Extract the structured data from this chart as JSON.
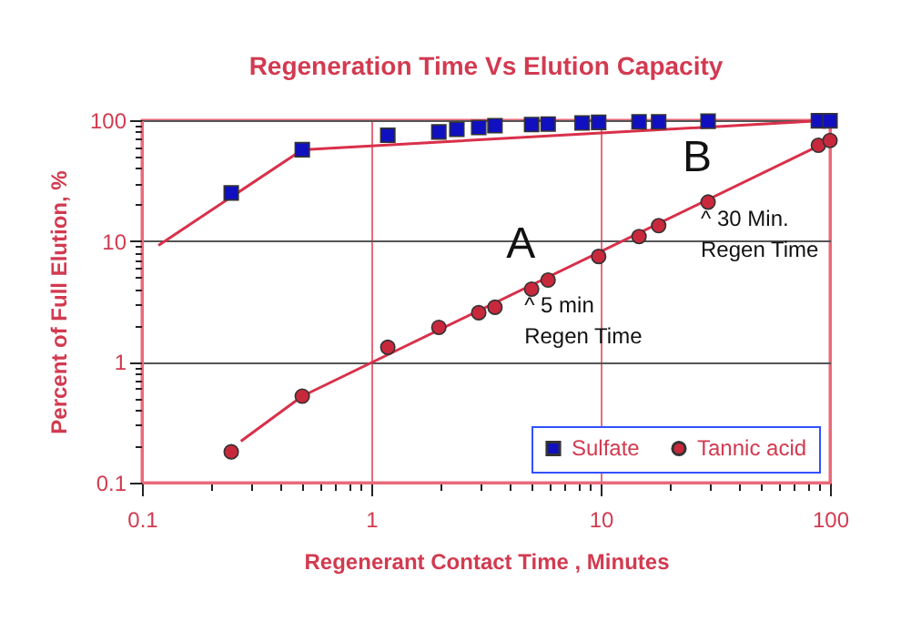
{
  "chart_data": {
    "type": "scatter",
    "title": "Regeneration Time Vs Elution Capacity",
    "xlabel": "Regenerant Contact Time , Minutes",
    "ylabel": "Percent of Full Elution, %",
    "log": "xy",
    "grid": true,
    "legend": "bottom right",
    "xlim": [
      0.1,
      100
    ],
    "ylim": [
      0.1,
      100
    ],
    "xticks": [
      0.1,
      {
        "value": 0.2,
        "label": null
      },
      {
        "value": 0.3,
        "label": null
      },
      {
        "value": 0.4,
        "label": null
      },
      {
        "value": 0.5,
        "label": null
      },
      {
        "value": 0.6,
        "label": null
      },
      {
        "value": 0.7,
        "label": null
      },
      {
        "value": 0.8,
        "label": null
      },
      {
        "value": 0.9,
        "label": null
      },
      1,
      {
        "value": 2,
        "label": null
      },
      {
        "value": 3,
        "label": null
      },
      {
        "value": 4,
        "label": null
      },
      {
        "value": 5,
        "label": null
      },
      {
        "value": 6,
        "label": null
      },
      {
        "value": 7,
        "label": null
      },
      {
        "value": 8,
        "label": null
      },
      {
        "value": 9,
        "label": null
      },
      10,
      {
        "value": 20,
        "label": null
      },
      {
        "value": 30,
        "label": null
      },
      {
        "value": 40,
        "label": null
      },
      {
        "value": 50,
        "label": null
      },
      {
        "value": 60,
        "label": null
      },
      {
        "value": 70,
        "label": null
      },
      {
        "value": 80,
        "label": null
      },
      {
        "value": 90,
        "label": null
      },
      100
    ],
    "yticks": [
      0.1,
      {
        "value": 0.2,
        "label": null
      },
      {
        "value": 0.3,
        "label": null
      },
      {
        "value": 0.4,
        "label": null
      },
      {
        "value": 0.5,
        "label": null
      },
      {
        "value": 0.6,
        "label": null
      },
      {
        "value": 0.7,
        "label": null
      },
      {
        "value": 0.8,
        "label": null
      },
      {
        "value": 0.9,
        "label": null
      },
      1,
      {
        "value": 2,
        "label": null
      },
      {
        "value": 3,
        "label": null
      },
      {
        "value": 4,
        "label": null
      },
      {
        "value": 5,
        "label": null
      },
      {
        "value": 6,
        "label": null
      },
      {
        "value": 7,
        "label": null
      },
      {
        "value": 8,
        "label": null
      },
      {
        "value": 9,
        "label": null
      },
      10,
      {
        "value": 20,
        "label": null
      },
      {
        "value": 30,
        "label": null
      },
      {
        "value": 40,
        "label": null
      },
      {
        "value": 50,
        "label": null
      },
      {
        "value": 60,
        "label": null
      },
      {
        "value": 70,
        "label": null
      },
      {
        "value": 80,
        "label": null
      },
      {
        "value": 90,
        "label": null
      },
      100
    ],
    "series": [
      {
        "type": "line",
        "color": "#d9304a",
        "x": [
          0.118,
          0.5,
          100
        ],
        "values": [
          9.2,
          57,
          100
        ]
      },
      {
        "type": "line",
        "color": "#d9304a",
        "x": [
          0.27,
          0.5,
          100
        ],
        "values": [
          0.22,
          0.52,
          68
        ]
      },
      {
        "name": "Sulfate",
        "color": "#1010c0",
        "marker": "square",
        "x": [
          0.245,
          0.5,
          1.18,
          1.97,
          2.36,
          2.94,
          3.46,
          5,
          5.9,
          8.3,
          9.8,
          14.7,
          17.9,
          29.4,
          89,
          100
        ],
        "values": [
          25,
          57,
          75,
          80,
          84,
          87,
          90,
          92,
          93,
          95,
          96,
          97,
          97,
          98,
          99,
          99
        ]
      },
      {
        "name": "Tannic acid",
        "color": "#c8283c",
        "marker": "circle",
        "x": [
          0.245,
          0.5,
          1.18,
          1.97,
          2.94,
          3.46,
          5,
          5.9,
          9.8,
          14.7,
          17.9,
          29.4,
          89,
          100
        ],
        "values": [
          0.18,
          0.52,
          1.32,
          1.93,
          2.55,
          2.83,
          4,
          4.75,
          7.45,
          10.9,
          13.4,
          21,
          62,
          68
        ]
      }
    ],
    "annotations": [
      "A",
      {
        "text": "^ 5 min\nRegen  Time",
        "x": 5,
        "y": 4
      },
      "B",
      {
        "text": "^ 30 Min.\nRegen Time",
        "x": 29.4,
        "y": 21
      }
    ]
  }
}
